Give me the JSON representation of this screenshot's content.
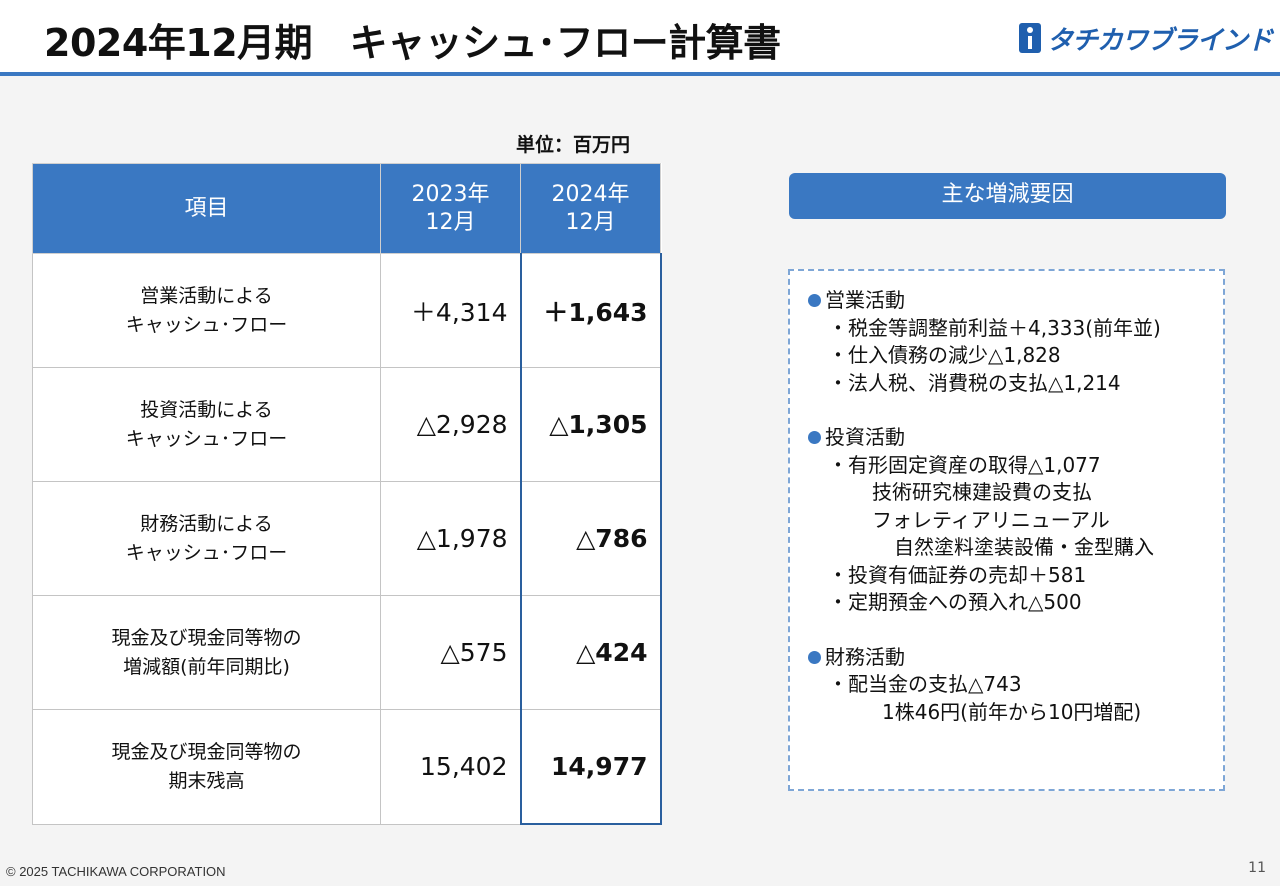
{
  "header": {
    "title": "2024年12月期　キャッシュ･フロー計算書",
    "logo_text": "タチカワブラインド"
  },
  "unit_label": "単位：百万円",
  "table": {
    "headers": [
      "項目",
      "2023年\n12月",
      "2024年\n12月"
    ],
    "rows": [
      {
        "item": "営業活動による\nキャッシュ･フロー",
        "prev": "＋4,314",
        "curr": "＋1,643"
      },
      {
        "item": "投資活動による\nキャッシュ･フロー",
        "prev": "△2,928",
        "curr": "△1,305"
      },
      {
        "item": "財務活動による\nキャッシュ･フロー",
        "prev": "△1,978",
        "curr": "△786"
      },
      {
        "item": "現金及び現金同等物の\n増減額(前年同期比)",
        "prev": "△575",
        "curr": "△424"
      },
      {
        "item": "現金及び現金同等物の\n期末残高",
        "prev": "15,402",
        "curr": "14,977"
      }
    ]
  },
  "factors": {
    "title": "主な増減要因",
    "sections": [
      {
        "heading": "営業活動",
        "lines": [
          "・税金等調整前利益＋4,333(前年並)",
          "・仕入債務の減少△1,828",
          "・法人税、消費税の支払△1,214"
        ]
      },
      {
        "heading": "投資活動",
        "lines": [
          "・有形固定資産の取得△1,077",
          "技術研究棟建設費の支払",
          "フォレティアリニューアル",
          "自然塗料塗装設備・金型購入",
          "・投資有価証券の売却＋581",
          "・定期預金への預入れ△500"
        ]
      },
      {
        "heading": "財務活動",
        "lines": [
          "・配当金の支払△743",
          "1株46円(前年から10円増配)"
        ]
      }
    ]
  },
  "footer": {
    "copyright": "© 2025 TACHIKAWA CORPORATION",
    "page_number": "11"
  },
  "colors": {
    "accent": "#3a78c2",
    "logo": "#1f5fae"
  }
}
